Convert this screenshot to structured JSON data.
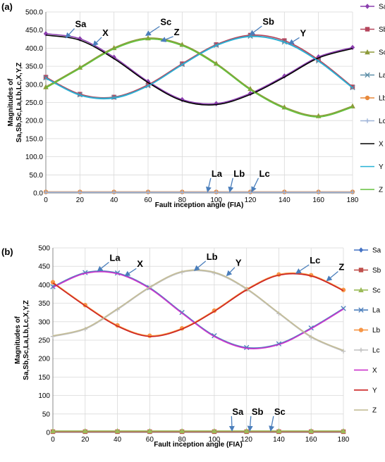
{
  "chart_data": [
    {
      "panel_label": "(a)",
      "type": "line",
      "xlabel": "Fault inception angle (FIA)",
      "ylabel_lines": [
        "Magnitudes of",
        "Sa,Sb,Sc,La,Lb,Lc,X,Y,Z"
      ],
      "x": [
        0,
        20,
        40,
        60,
        80,
        100,
        120,
        140,
        160,
        180
      ],
      "xlim": [
        0,
        180
      ],
      "ylim": [
        0,
        500
      ],
      "xticks": [
        "0",
        "20",
        "40",
        "60",
        "80",
        "100",
        "120",
        "140",
        "160",
        "180"
      ],
      "yticks": [
        "0.0",
        "50.0",
        "100.0",
        "150.0",
        "200.0",
        "250.0",
        "300.0",
        "350.0",
        "400.0",
        "450.0",
        "500.0"
      ],
      "grid": true,
      "legend_position": "right",
      "series": [
        {
          "name": "Sa",
          "color": "#8b3fae",
          "marker": "diamond",
          "values": [
            440,
            426,
            375,
            308,
            258,
            247,
            275,
            323,
            376,
            402
          ]
        },
        {
          "name": "Sb",
          "color": "#b5455c",
          "marker": "square",
          "values": [
            320,
            273,
            265,
            299,
            357,
            410,
            436,
            421,
            368,
            293
          ]
        },
        {
          "name": "Sc",
          "color": "#8d9a3a",
          "marker": "triangle",
          "values": [
            293,
            347,
            401,
            428,
            410,
            358,
            288,
            237,
            213,
            240
          ]
        },
        {
          "name": "La",
          "color": "#5d8fa8",
          "marker": "x",
          "values": [
            318,
            271,
            264,
            296,
            355,
            408,
            433,
            417,
            365,
            291
          ]
        },
        {
          "name": "Lb",
          "color": "#e8893b",
          "marker": "circle",
          "values": [
            3,
            3,
            3,
            3,
            3,
            3,
            3,
            3,
            3,
            3
          ]
        },
        {
          "name": "Lc",
          "color": "#9fb4d8",
          "marker": "plus",
          "values": [
            2,
            2,
            2,
            2,
            2,
            2,
            2,
            2,
            2,
            2
          ]
        },
        {
          "name": "X",
          "color": "#000000",
          "marker": "none",
          "values": [
            436,
            422,
            371,
            305,
            255,
            244,
            272,
            320,
            373,
            399
          ]
        },
        {
          "name": "Y",
          "color": "#27b1d6",
          "marker": "none",
          "values": [
            317,
            270,
            262,
            296,
            354,
            407,
            432,
            416,
            364,
            290
          ]
        },
        {
          "name": "Z",
          "color": "#63c13d",
          "marker": "none",
          "values": [
            290,
            344,
            398,
            425,
            407,
            355,
            285,
            234,
            210,
            237
          ]
        }
      ],
      "annotations": [
        {
          "text": "Sa",
          "x": 18,
          "y": 458,
          "ax": 12,
          "ay": 430
        },
        {
          "text": "X",
          "x": 34,
          "y": 434,
          "ax": 28,
          "ay": 408
        },
        {
          "text": "Sc",
          "x": 68,
          "y": 464,
          "ax": 59,
          "ay": 436
        },
        {
          "text": "Z",
          "x": 76,
          "y": 436,
          "ax": 68,
          "ay": 420
        },
        {
          "text": "Sb",
          "x": 128,
          "y": 465,
          "ax": 120,
          "ay": 437
        },
        {
          "text": "Y",
          "x": 150,
          "y": 433,
          "ax": 143,
          "ay": 412
        },
        {
          "text": "La",
          "x": 98,
          "y": 45,
          "ax": 95,
          "ay": 5
        },
        {
          "text": "Lb",
          "x": 111,
          "y": 45,
          "ax": 108,
          "ay": 5
        },
        {
          "text": "Lc",
          "x": 126,
          "y": 45,
          "ax": 121,
          "ay": 5
        }
      ]
    },
    {
      "panel_label": "(b)",
      "type": "line",
      "xlabel": "Fault inception angle (FIA)",
      "ylabel_lines": [
        "Magnitudes of",
        "Sa,Sb,Sc,La,Lb,Lc,X,Y,Z"
      ],
      "x": [
        0,
        20,
        40,
        60,
        80,
        100,
        120,
        140,
        160,
        180
      ],
      "xlim": [
        0,
        180
      ],
      "ylim": [
        0,
        500
      ],
      "xticks": [
        "0",
        "20",
        "40",
        "60",
        "80",
        "100",
        "120",
        "140",
        "160",
        "180"
      ],
      "yticks": [
        "0",
        "50",
        "100",
        "150",
        "200",
        "250",
        "300",
        "350",
        "400",
        "450",
        "500"
      ],
      "grid": true,
      "legend_position": "right",
      "series": [
        {
          "name": "Sa",
          "color": "#4472c4",
          "marker": "diamond",
          "values": [
            3,
            3,
            3,
            3,
            3,
            3,
            3,
            3,
            3,
            3
          ]
        },
        {
          "name": "Sb",
          "color": "#c0504d",
          "marker": "square",
          "values": [
            2,
            2,
            2,
            2,
            2,
            2,
            2,
            2,
            2,
            2
          ]
        },
        {
          "name": "Sc",
          "color": "#9bbb59",
          "marker": "triangle",
          "values": [
            4,
            4,
            4,
            4,
            4,
            4,
            4,
            4,
            4,
            4
          ]
        },
        {
          "name": "La",
          "color": "#4f81bd",
          "marker": "x",
          "values": [
            395,
            433,
            432,
            392,
            325,
            262,
            230,
            240,
            283,
            336
          ]
        },
        {
          "name": "Lb",
          "color": "#f79646",
          "marker": "circle",
          "values": [
            407,
            345,
            290,
            262,
            282,
            330,
            388,
            428,
            426,
            386
          ]
        },
        {
          "name": "Lc",
          "color": "#c0c0c0",
          "marker": "plus",
          "values": [
            260,
            280,
            333,
            392,
            434,
            432,
            388,
            322,
            258,
            220
          ]
        },
        {
          "name": "X",
          "color": "#cc33cc",
          "marker": "none",
          "values": [
            393,
            431,
            430,
            390,
            323,
            260,
            228,
            238,
            281,
            334
          ]
        },
        {
          "name": "Y",
          "color": "#cc2222",
          "marker": "none",
          "values": [
            405,
            343,
            288,
            260,
            280,
            328,
            386,
            426,
            424,
            384
          ]
        },
        {
          "name": "Z",
          "color": "#c4bd97",
          "marker": "none",
          "values": [
            262,
            282,
            335,
            394,
            436,
            434,
            390,
            324,
            260,
            222
          ]
        }
      ],
      "annotations": [
        {
          "text": "La",
          "x": 36,
          "y": 465,
          "ax": 28,
          "ay": 438
        },
        {
          "text": "X",
          "x": 53,
          "y": 448,
          "ax": 45,
          "ay": 425
        },
        {
          "text": "Lb",
          "x": 96,
          "y": 468,
          "ax": 88,
          "ay": 440
        },
        {
          "text": "Y",
          "x": 114,
          "y": 451,
          "ax": 108,
          "ay": 426
        },
        {
          "text": "Lc",
          "x": 160,
          "y": 458,
          "ax": 151,
          "ay": 432
        },
        {
          "text": "Z",
          "x": 178,
          "y": 440,
          "ax": 170,
          "ay": 412
        },
        {
          "text": "Sa",
          "x": 112,
          "y": 48,
          "ax": 111,
          "ay": 6
        },
        {
          "text": "Sb",
          "x": 124,
          "y": 48,
          "ax": 122,
          "ay": 6
        },
        {
          "text": "Sc",
          "x": 138,
          "y": 48,
          "ax": 135,
          "ay": 6
        }
      ]
    }
  ]
}
